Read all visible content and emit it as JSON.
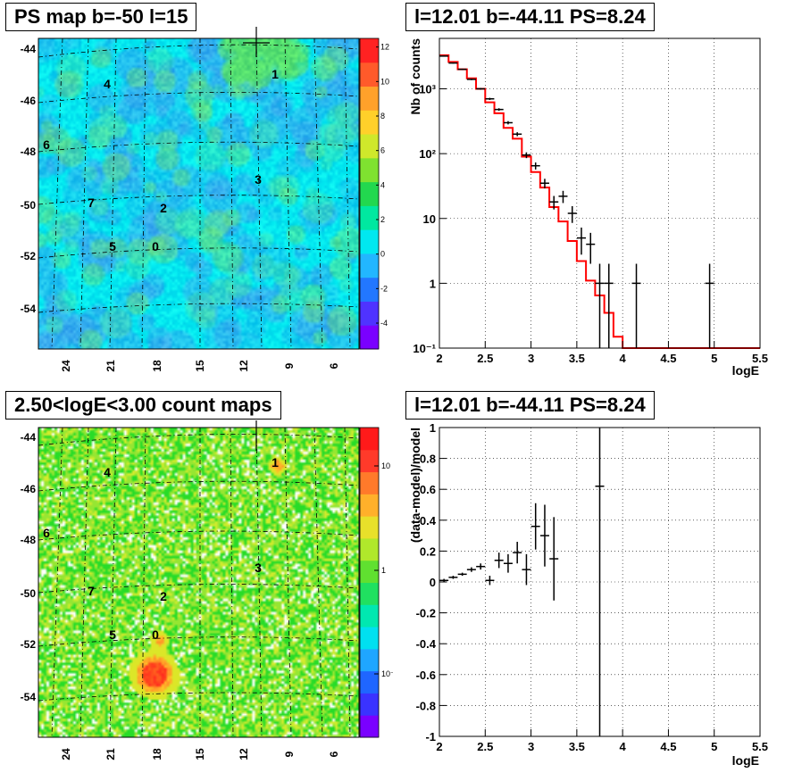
{
  "panels": {
    "ps_map": {
      "title": "PS map b=-50 l=15",
      "y_ticks": [
        "-44",
        "-46",
        "-48",
        "-50",
        "-52",
        "-54"
      ],
      "x_ticks": [
        "24",
        "21",
        "18",
        "15",
        "12",
        "9",
        "6"
      ],
      "colorbar_ticks": [
        "12",
        "10",
        "8",
        "6",
        "4",
        "2",
        "0",
        "-2",
        "-4"
      ],
      "sources": [
        "0",
        "1",
        "2",
        "3",
        "4",
        "5",
        "6",
        "7"
      ],
      "colors": {
        "background": "#00e8f0",
        "mottle": "#3aa7ee",
        "green": "#55e070",
        "colorbar": [
          "#7a00ff",
          "#4f33ff",
          "#2277ff",
          "#22b6ff",
          "#00e8f0",
          "#00e8a0",
          "#22d84f",
          "#7fe230",
          "#cfe82b",
          "#ffd02a",
          "#ffa12a",
          "#ff5a2a",
          "#ff2222"
        ]
      }
    },
    "count_map": {
      "title": "2.50<logE<3.00 count maps",
      "y_ticks": [
        "-44",
        "-46",
        "-48",
        "-50",
        "-52",
        "-54"
      ],
      "x_ticks": [
        "24",
        "21",
        "18",
        "15",
        "12",
        "9",
        "6"
      ],
      "colorbar_ticks": [
        "10",
        "1",
        "10⁻¹"
      ],
      "sources": [
        "0",
        "1",
        "2",
        "3",
        "4",
        "5",
        "6",
        "7"
      ],
      "colors": {
        "green": "#22dd22",
        "yellow": "#bfe82a",
        "red": "#ff1f1f"
      }
    }
  },
  "chart_data": [
    {
      "type": "line",
      "title": "l=12.01 b=-44.11 PS=8.24",
      "xlabel": "logE",
      "ylabel": "Nb of counts",
      "xlim": [
        2,
        5.5
      ],
      "ylim": [
        0.1,
        6000
      ],
      "log_y": true,
      "grid": true,
      "x_ticks": [
        "2",
        "2.5",
        "3",
        "3.5",
        "4",
        "4.5",
        "5",
        "5.5"
      ],
      "y_ticks": [
        {
          "value": 0.1,
          "label": "10⁻¹"
        },
        {
          "value": 1,
          "label": "1"
        },
        {
          "value": 10,
          "label": "10"
        },
        {
          "value": 100,
          "label": "10²"
        },
        {
          "value": 1000,
          "label": "10³"
        }
      ],
      "data_points": [
        {
          "x": 2.05,
          "y": 3200
        },
        {
          "x": 2.15,
          "y": 2500
        },
        {
          "x": 2.25,
          "y": 2000
        },
        {
          "x": 2.35,
          "y": 1400
        },
        {
          "x": 2.45,
          "y": 1000
        },
        {
          "x": 2.55,
          "y": 700
        },
        {
          "x": 2.65,
          "y": 480
        },
        {
          "x": 2.75,
          "y": 300
        },
        {
          "x": 2.85,
          "y": 200
        },
        {
          "x": 2.95,
          "y": 95
        },
        {
          "x": 3.05,
          "y": 65
        },
        {
          "x": 3.15,
          "y": 35
        },
        {
          "x": 3.25,
          "y": 18
        },
        {
          "x": 3.35,
          "y": 22
        },
        {
          "x": 3.45,
          "y": 12
        },
        {
          "x": 3.55,
          "y": 5
        },
        {
          "x": 3.65,
          "y": 4
        },
        {
          "x": 3.75,
          "y": 1
        },
        {
          "x": 3.85,
          "y": 1
        },
        {
          "x": 4.15,
          "y": 1
        },
        {
          "x": 4.95,
          "y": 1
        }
      ],
      "model_steps": [
        {
          "x0": 2.0,
          "x1": 2.1,
          "y": 3300
        },
        {
          "x0": 2.1,
          "x1": 2.2,
          "y": 2600
        },
        {
          "x0": 2.2,
          "x1": 2.3,
          "y": 2000
        },
        {
          "x0": 2.3,
          "x1": 2.4,
          "y": 1450
        },
        {
          "x0": 2.4,
          "x1": 2.5,
          "y": 1000
        },
        {
          "x0": 2.5,
          "x1": 2.6,
          "y": 620
        },
        {
          "x0": 2.6,
          "x1": 2.7,
          "y": 420
        },
        {
          "x0": 2.7,
          "x1": 2.8,
          "y": 250
        },
        {
          "x0": 2.8,
          "x1": 2.9,
          "y": 170
        },
        {
          "x0": 2.9,
          "x1": 3.0,
          "y": 90
        },
        {
          "x0": 3.0,
          "x1": 3.1,
          "y": 52
        },
        {
          "x0": 3.1,
          "x1": 3.2,
          "y": 30
        },
        {
          "x0": 3.2,
          "x1": 3.3,
          "y": 15
        },
        {
          "x0": 3.3,
          "x1": 3.4,
          "y": 9
        },
        {
          "x0": 3.4,
          "x1": 3.5,
          "y": 4.5
        },
        {
          "x0": 3.5,
          "x1": 3.6,
          "y": 2.2
        },
        {
          "x0": 3.6,
          "x1": 3.7,
          "y": 1.1
        },
        {
          "x0": 3.7,
          "x1": 3.8,
          "y": 0.65
        },
        {
          "x0": 3.8,
          "x1": 3.9,
          "y": 0.35
        },
        {
          "x0": 3.9,
          "x1": 4.0,
          "y": 0.15
        },
        {
          "x0": 4.0,
          "x1": 5.5,
          "y": 0.1
        }
      ],
      "colors": {
        "data": "#000000",
        "model": "#ff0000",
        "grid": "#000000"
      }
    },
    {
      "type": "scatter",
      "title": "l=12.01 b=-44.11 PS=8.24",
      "xlabel": "logE",
      "ylabel": "(data-model)/model",
      "xlim": [
        2,
        5.5
      ],
      "ylim": [
        -1,
        1
      ],
      "grid": true,
      "x_ticks": [
        "2",
        "2.5",
        "3",
        "3.5",
        "4",
        "4.5",
        "5",
        "5.5"
      ],
      "y_ticks": [
        "-1",
        "-0.8",
        "-0.6",
        "-0.4",
        "-0.2",
        "0",
        "0.2",
        "0.4",
        "0.6",
        "0.8",
        "1"
      ],
      "data_points": [
        {
          "x": 2.05,
          "y": 0.01,
          "err": 0.01
        },
        {
          "x": 2.15,
          "y": 0.03,
          "err": 0.01
        },
        {
          "x": 2.25,
          "y": 0.05,
          "err": 0.01
        },
        {
          "x": 2.35,
          "y": 0.08,
          "err": 0.015
        },
        {
          "x": 2.45,
          "y": 0.1,
          "err": 0.02
        },
        {
          "x": 2.55,
          "y": 0.01,
          "err": 0.03
        },
        {
          "x": 2.65,
          "y": 0.14,
          "err": 0.05
        },
        {
          "x": 2.75,
          "y": 0.12,
          "err": 0.06
        },
        {
          "x": 2.85,
          "y": 0.19,
          "err": 0.07
        },
        {
          "x": 2.95,
          "y": 0.08,
          "err": 0.1
        },
        {
          "x": 3.05,
          "y": 0.36,
          "err": 0.15
        },
        {
          "x": 3.15,
          "y": 0.3,
          "err": 0.2
        },
        {
          "x": 3.25,
          "y": 0.15,
          "err": 0.27
        },
        {
          "x": 3.75,
          "y": 0.62,
          "err": 1.62
        }
      ],
      "colors": {
        "data": "#000000",
        "grid": "#000000"
      }
    }
  ]
}
